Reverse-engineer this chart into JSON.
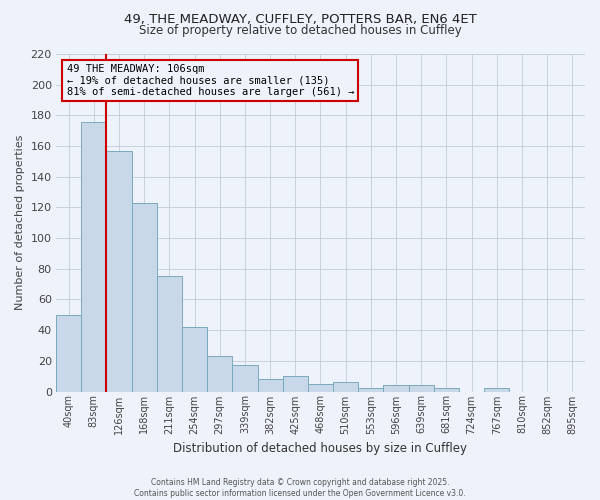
{
  "title_line1": "49, THE MEADWAY, CUFFLEY, POTTERS BAR, EN6 4ET",
  "title_line2": "Size of property relative to detached houses in Cuffley",
  "xlabel": "Distribution of detached houses by size in Cuffley",
  "ylabel": "Number of detached properties",
  "categories": [
    "40sqm",
    "83sqm",
    "126sqm",
    "168sqm",
    "211sqm",
    "254sqm",
    "297sqm",
    "339sqm",
    "382sqm",
    "425sqm",
    "468sqm",
    "510sqm",
    "553sqm",
    "596sqm",
    "639sqm",
    "681sqm",
    "724sqm",
    "767sqm",
    "810sqm",
    "852sqm",
    "895sqm"
  ],
  "bar_heights": [
    50,
    176,
    157,
    123,
    75,
    42,
    23,
    17,
    8,
    10,
    5,
    6,
    2,
    4,
    4,
    2,
    0,
    2,
    0,
    0,
    0
  ],
  "ylim": [
    0,
    220
  ],
  "yticks": [
    0,
    20,
    40,
    60,
    80,
    100,
    120,
    140,
    160,
    180,
    200,
    220
  ],
  "bar_color": "#c8d8e8",
  "bar_edge_color": "#7aaabf",
  "vline_x": 1.5,
  "vline_color": "#cc0000",
  "annotation_text": "49 THE MEADWAY: 106sqm\n← 19% of detached houses are smaller (135)\n81% of semi-detached houses are larger (561) →",
  "annotation_box_color": "#cc0000",
  "annotation_text_color": "#000000",
  "background_color": "#eef2fa",
  "footer_text": "Contains HM Land Registry data © Crown copyright and database right 2025.\nContains public sector information licensed under the Open Government Licence v3.0.",
  "grid_color": "#c8d0dc"
}
